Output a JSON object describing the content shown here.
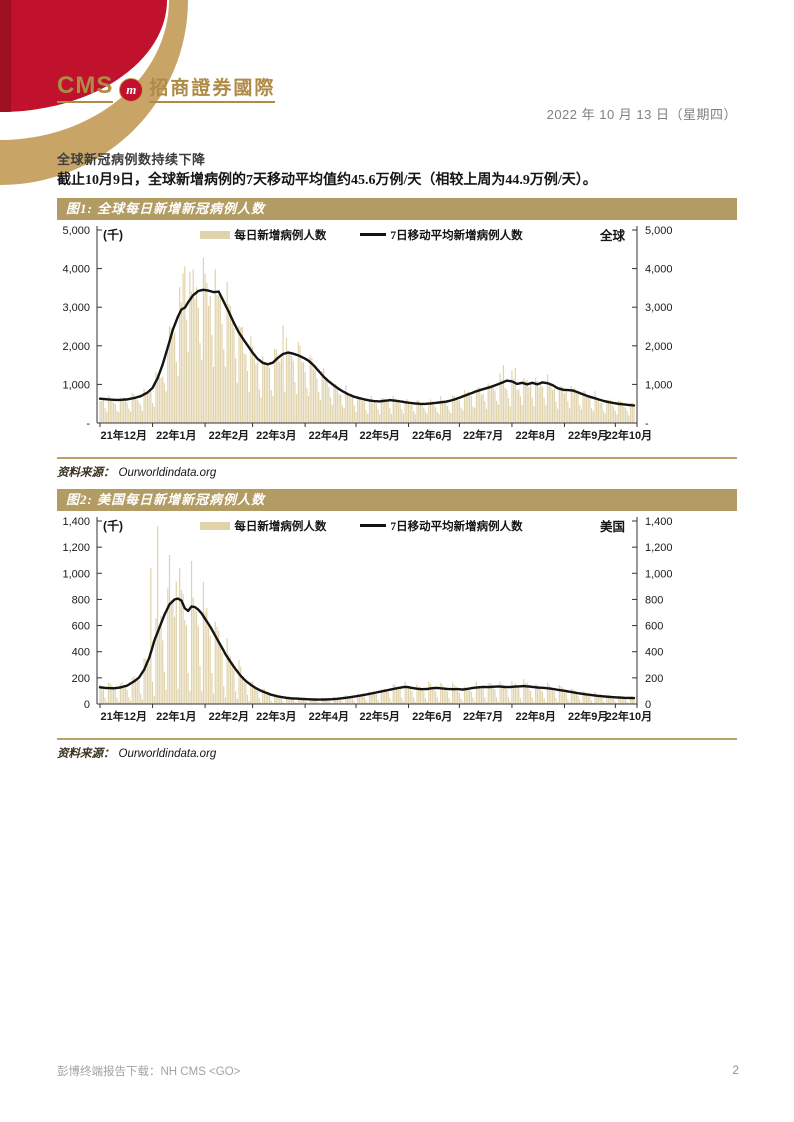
{
  "page": {
    "logo_cms": "CMS",
    "logo_m": "m",
    "logo_cn": "招商證券國際",
    "date": "2022 年 10 月 13 日（星期四）",
    "heading": "全球新冠病例数持续下降",
    "paragraph": "截止10月9日，全球新增病例的7天移动平均值约45.6万例/天（相较上周为44.9万例/天）。",
    "footer_left": "彭博终端报告下载：NH CMS <GO>",
    "page_number": "2"
  },
  "colors": {
    "accent_gold": "#b29c63",
    "bar_fill": "#e0d3ab",
    "line_black": "#141414",
    "brand_red": "#c0122c",
    "brand_red_dark": "#9d1022",
    "brand_gold_arc": "#c8a567",
    "logo_gold": "#ae8c47"
  },
  "figures": [
    {
      "title": "图1: 全球每日新增新冠病例人数",
      "unit_label": "(千)",
      "legend_bars": "每日新增病例人数",
      "legend_line": "7日移动平均新增病例人数",
      "region_label": "全球",
      "source_label": "资料来源：",
      "source_value": "Ourworldindata.org"
    },
    {
      "title": "图2: 美国每日新增新冠病例人数",
      "unit_label": "(千)",
      "legend_bars": "每日新增病例人数",
      "legend_line": "7日移动平均新增病例人数",
      "region_label": "美国",
      "source_label": "资料来源：",
      "source_value": "Ourworldindata.org"
    }
  ],
  "chart_data": [
    {
      "type": "bar",
      "title": "图1: 全球每日新增新冠病例人数",
      "region": "全球",
      "unit": "千",
      "legend": [
        "每日新增病例人数",
        "7日移动平均新增病例人数"
      ],
      "x_months": [
        "21年12月",
        "22年1月",
        "22年2月",
        "22年3月",
        "22年4月",
        "22年5月",
        "22年6月",
        "22年7月",
        "22年8月",
        "22年9月",
        "22年10月"
      ],
      "month_start_days": [
        0,
        31,
        62,
        90,
        121,
        151,
        182,
        212,
        243,
        274,
        304
      ],
      "total_days": 316,
      "ylim": [
        0,
        5000
      ],
      "y_tick_step": 1000,
      "y_tick_labels": [
        "-",
        "1,000",
        "2,000",
        "3,000",
        "4,000",
        "5,000"
      ],
      "bar_color": "#e0d3ab",
      "line_color": "#141414",
      "seed": 0,
      "ma_line_points": [
        [
          0,
          630
        ],
        [
          4,
          615
        ],
        [
          8,
          600
        ],
        [
          12,
          598
        ],
        [
          16,
          612
        ],
        [
          20,
          645
        ],
        [
          24,
          695
        ],
        [
          28,
          790
        ],
        [
          31,
          910
        ],
        [
          34,
          1160
        ],
        [
          37,
          1520
        ],
        [
          40,
          1960
        ],
        [
          43,
          2420
        ],
        [
          46,
          2760
        ],
        [
          48,
          2940
        ],
        [
          50,
          2985
        ],
        [
          52,
          3130
        ],
        [
          55,
          3310
        ],
        [
          58,
          3420
        ],
        [
          61,
          3450
        ],
        [
          64,
          3430
        ],
        [
          67,
          3390
        ],
        [
          70,
          3405
        ],
        [
          73,
          3140
        ],
        [
          76,
          2880
        ],
        [
          79,
          2590
        ],
        [
          82,
          2340
        ],
        [
          85,
          2140
        ],
        [
          88,
          1950
        ],
        [
          90,
          1820
        ],
        [
          93,
          1660
        ],
        [
          96,
          1560
        ],
        [
          99,
          1520
        ],
        [
          102,
          1565
        ],
        [
          105,
          1690
        ],
        [
          108,
          1790
        ],
        [
          111,
          1825
        ],
        [
          114,
          1795
        ],
        [
          117,
          1750
        ],
        [
          120,
          1690
        ],
        [
          123,
          1615
        ],
        [
          126,
          1495
        ],
        [
          129,
          1345
        ],
        [
          132,
          1195
        ],
        [
          135,
          1075
        ],
        [
          138,
          975
        ],
        [
          141,
          880
        ],
        [
          144,
          800
        ],
        [
          147,
          732
        ],
        [
          150,
          680
        ],
        [
          153,
          642
        ],
        [
          156,
          612
        ],
        [
          159,
          582
        ],
        [
          162,
          566
        ],
        [
          165,
          560
        ],
        [
          168,
          576
        ],
        [
          171,
          592
        ],
        [
          174,
          580
        ],
        [
          177,
          560
        ],
        [
          180,
          540
        ],
        [
          183,
          520
        ],
        [
          186,
          506
        ],
        [
          189,
          496
        ],
        [
          192,
          496
        ],
        [
          195,
          506
        ],
        [
          198,
          522
        ],
        [
          201,
          536
        ],
        [
          204,
          552
        ],
        [
          207,
          582
        ],
        [
          210,
          622
        ],
        [
          213,
          672
        ],
        [
          216,
          722
        ],
        [
          219,
          772
        ],
        [
          222,
          822
        ],
        [
          225,
          862
        ],
        [
          228,
          902
        ],
        [
          231,
          942
        ],
        [
          234,
          992
        ],
        [
          237,
          1042
        ],
        [
          240,
          1098
        ],
        [
          243,
          1078
        ],
        [
          246,
          1012
        ],
        [
          249,
          1042
        ],
        [
          252,
          1002
        ],
        [
          255,
          1042
        ],
        [
          258,
          1002
        ],
        [
          261,
          1052
        ],
        [
          264,
          1032
        ],
        [
          267,
          982
        ],
        [
          270,
          902
        ],
        [
          273,
          862
        ],
        [
          276,
          852
        ],
        [
          279,
          842
        ],
        [
          282,
          792
        ],
        [
          285,
          742
        ],
        [
          288,
          692
        ],
        [
          291,
          652
        ],
        [
          294,
          612
        ],
        [
          297,
          572
        ],
        [
          300,
          542
        ],
        [
          303,
          516
        ],
        [
          306,
          496
        ],
        [
          309,
          481
        ],
        [
          312,
          466
        ],
        [
          315,
          456
        ]
      ],
      "daily_bars_weekly_pattern": [
        1.16,
        1.1,
        1.02,
        0.95,
        0.88,
        0.6,
        0.44
      ],
      "daily_bars_outliers": {
        "49": 3880,
        "50": 4060,
        "53": 3920,
        "108": 2530,
        "238": 1500,
        "245": 1430
      },
      "bars_note": "daily bars estimated as 7-day moving average × weekday pattern; peak daily bar ≈ 4,060 thousand in late Jan 2022; latest MA 456 (45.6万例/天)"
    },
    {
      "type": "bar",
      "title": "图2: 美国每日新增新冠病例人数",
      "region": "美国",
      "unit": "千",
      "legend": [
        "每日新增病例人数",
        "7日移动平均新增病例人数"
      ],
      "x_months": [
        "21年12月",
        "22年1月",
        "22年2月",
        "22年3月",
        "22年4月",
        "22年5月",
        "22年6月",
        "22年7月",
        "22年8月",
        "22年9月",
        "22年10月"
      ],
      "month_start_days": [
        0,
        31,
        62,
        90,
        121,
        151,
        182,
        212,
        243,
        274,
        304
      ],
      "total_days": 316,
      "ylim": [
        0,
        1400
      ],
      "y_tick_step": 200,
      "y_tick_labels": [
        "0",
        "200",
        "400",
        "600",
        "800",
        "1,000",
        "1,200",
        "1,400"
      ],
      "bar_color": "#e0d3ab",
      "line_color": "#141414",
      "seed": 1,
      "ma_line_points": [
        [
          0,
          128
        ],
        [
          4,
          122
        ],
        [
          8,
          120
        ],
        [
          12,
          126
        ],
        [
          16,
          141
        ],
        [
          20,
          172
        ],
        [
          23,
          202
        ],
        [
          26,
          262
        ],
        [
          29,
          352
        ],
        [
          32,
          482
        ],
        [
          35,
          582
        ],
        [
          38,
          682
        ],
        [
          41,
          762
        ],
        [
          44,
          800
        ],
        [
          46,
          806
        ],
        [
          48,
          792
        ],
        [
          50,
          732
        ],
        [
          52,
          712
        ],
        [
          54,
          746
        ],
        [
          56,
          741
        ],
        [
          58,
          722
        ],
        [
          60,
          692
        ],
        [
          62,
          652
        ],
        [
          65,
          592
        ],
        [
          68,
          522
        ],
        [
          71,
          452
        ],
        [
          74,
          382
        ],
        [
          77,
          322
        ],
        [
          80,
          266
        ],
        [
          83,
          216
        ],
        [
          86,
          176
        ],
        [
          89,
          146
        ],
        [
          92,
          121
        ],
        [
          95,
          101
        ],
        [
          98,
          86
        ],
        [
          101,
          71
        ],
        [
          104,
          61
        ],
        [
          107,
          53
        ],
        [
          110,
          47
        ],
        [
          113,
          43
        ],
        [
          116,
          41
        ],
        [
          119,
          39
        ],
        [
          122,
          37
        ],
        [
          125,
          35
        ],
        [
          128,
          34
        ],
        [
          131,
          34
        ],
        [
          134,
          35
        ],
        [
          137,
          37
        ],
        [
          140,
          40
        ],
        [
          143,
          44
        ],
        [
          146,
          49
        ],
        [
          149,
          55
        ],
        [
          152,
          61
        ],
        [
          155,
          68
        ],
        [
          158,
          75
        ],
        [
          161,
          83
        ],
        [
          164,
          91
        ],
        [
          167,
          99
        ],
        [
          170,
          107
        ],
        [
          173,
          115
        ],
        [
          176,
          123
        ],
        [
          179,
          129
        ],
        [
          181,
          131
        ],
        [
          184,
          123
        ],
        [
          187,
          117
        ],
        [
          190,
          113
        ],
        [
          193,
          115
        ],
        [
          196,
          121
        ],
        [
          199,
          123
        ],
        [
          202,
          119
        ],
        [
          205,
          115
        ],
        [
          208,
          113
        ],
        [
          211,
          114
        ],
        [
          214,
          111
        ],
        [
          217,
          116
        ],
        [
          220,
          123
        ],
        [
          223,
          127
        ],
        [
          226,
          131
        ],
        [
          229,
          129
        ],
        [
          232,
          132
        ],
        [
          235,
          134
        ],
        [
          238,
          131
        ],
        [
          241,
          129
        ],
        [
          244,
          132
        ],
        [
          247,
          135
        ],
        [
          250,
          137
        ],
        [
          253,
          134
        ],
        [
          256,
          129
        ],
        [
          259,
          125
        ],
        [
          262,
          123
        ],
        [
          265,
          119
        ],
        [
          268,
          113
        ],
        [
          271,
          107
        ],
        [
          274,
          101
        ],
        [
          277,
          94
        ],
        [
          280,
          87
        ],
        [
          283,
          81
        ],
        [
          286,
          75
        ],
        [
          289,
          70
        ],
        [
          292,
          65
        ],
        [
          295,
          61
        ],
        [
          298,
          57
        ],
        [
          301,
          54
        ],
        [
          304,
          51
        ],
        [
          307,
          49
        ],
        [
          310,
          47
        ],
        [
          313,
          46
        ],
        [
          315,
          45
        ]
      ],
      "daily_bars_weekly_pattern": [
        1.32,
        1.18,
        1.08,
        0.98,
        0.84,
        0.38,
        0.14
      ],
      "daily_bars_outliers": {
        "30": 1040,
        "34": 1360,
        "41": 1140,
        "45": 935
      },
      "bars_note": "daily bars estimated as 7-day moving average × weekday pattern; spike bars ≈ 1,360 / 1,140 / 1,040 thousand in early Jan 2022"
    }
  ]
}
